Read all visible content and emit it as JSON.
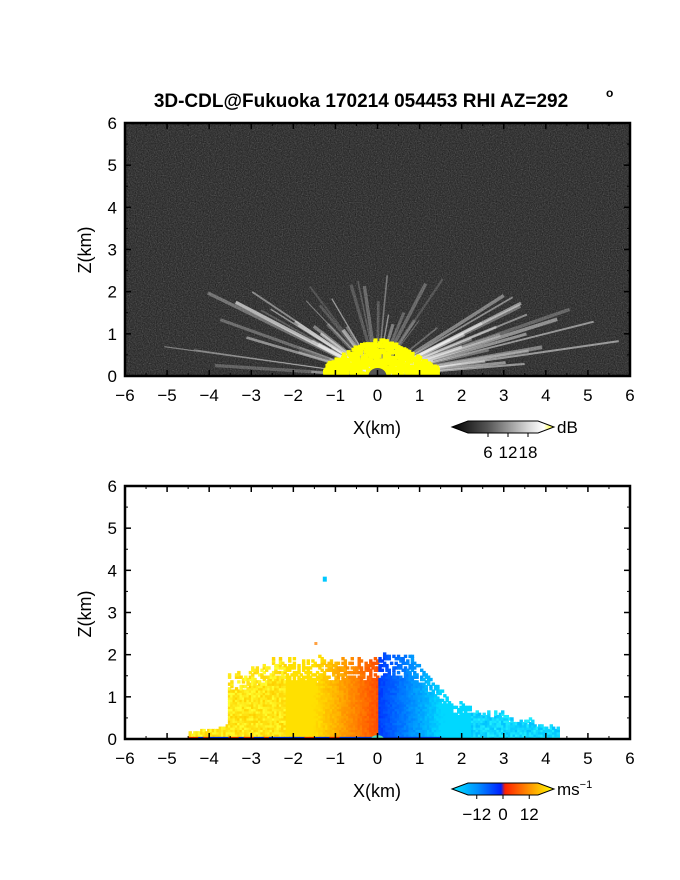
{
  "figure": {
    "title": "3D-CDL@Fukuoka 170214 054453 RHI AZ=292",
    "title_degree_sign": "o"
  },
  "chart_data": [
    {
      "type": "heatmap",
      "panel": "top",
      "field": "reflectivity",
      "xlabel": "X(km)",
      "ylabel": "Z(km)",
      "xlim": [
        -6,
        6
      ],
      "ylim": [
        0,
        6
      ],
      "xticks": [
        -6,
        -5,
        -4,
        -3,
        -2,
        -1,
        0,
        1,
        2,
        3,
        4,
        5,
        6
      ],
      "yticks": [
        0,
        1,
        2,
        3,
        4,
        5,
        6
      ],
      "grid": false,
      "background": "#1c1c1c",
      "colorbar": {
        "unit": "dB",
        "ticks": [
          6,
          12,
          18
        ],
        "range": [
          0,
          21
        ],
        "colors": [
          "#000000",
          "#3a3a3a",
          "#777777",
          "#b5b5b5",
          "#ffffff",
          "#ffff00"
        ]
      },
      "features": [
        {
          "name": "bright-fan",
          "x_range": [
            -6,
            6
          ],
          "z_top_center": 2.1,
          "color": "#ffffff"
        },
        {
          "name": "saturated-core",
          "x_range": [
            -1.3,
            1.4
          ],
          "z_top": 0.9,
          "color": "#ffff00"
        }
      ]
    },
    {
      "type": "heatmap",
      "panel": "bottom",
      "field": "doppler-velocity",
      "xlabel": "X(km)",
      "ylabel": "Z(km)",
      "xlim": [
        -6,
        6
      ],
      "ylim": [
        0,
        6
      ],
      "xticks": [
        -6,
        -5,
        -4,
        -3,
        -2,
        -1,
        0,
        1,
        2,
        3,
        4,
        5,
        6
      ],
      "yticks": [
        0,
        1,
        2,
        3,
        4,
        5,
        6
      ],
      "grid": false,
      "colorbar": {
        "unit": "ms",
        "unit_exponent": "−1",
        "tick_labels": [
          "−12",
          "0",
          "12"
        ],
        "ticks": [
          -12,
          0,
          12
        ],
        "range": [
          -16,
          16
        ],
        "colors": [
          "#00e6ff",
          "#00a0ff",
          "#0030ff",
          "#ff3000",
          "#ff9000",
          "#ffff00"
        ]
      },
      "features": [
        {
          "name": "receding-side",
          "x_range": [
            -4.5,
            0
          ],
          "z_top": 2.0,
          "colors": [
            "#ffd000",
            "#ff6a00"
          ]
        },
        {
          "name": "approaching-side",
          "x_range": [
            0,
            4.3
          ],
          "z_top": 2.1,
          "colors": [
            "#0040ff",
            "#00c8ff"
          ]
        },
        {
          "name": "isolated-echo",
          "x": -1.3,
          "z": 3.85
        }
      ]
    }
  ]
}
